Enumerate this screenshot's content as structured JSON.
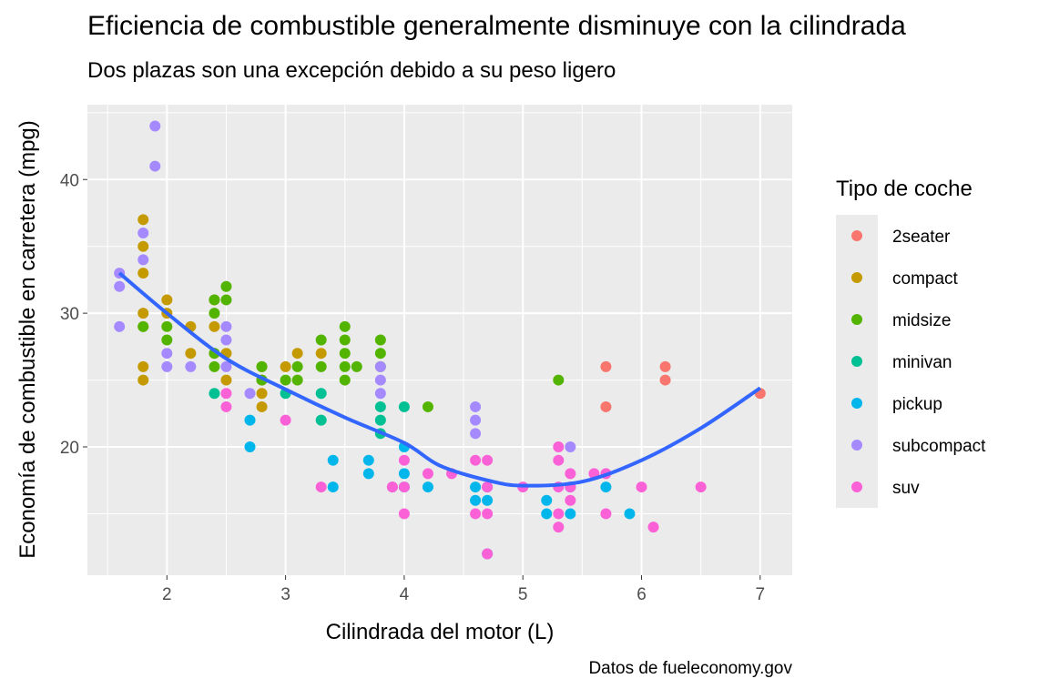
{
  "chart_data": {
    "type": "scatter",
    "title": "Eficiencia de combustible generalmente disminuye con la cilindrada",
    "subtitle": "Dos plazas son una excepción debido a su peso ligero",
    "caption": "Datos de fueleconomy.gov",
    "xlabel": "Cilindrada del motor (L)",
    "ylabel": "Economía de combustible en carretera (mpg)",
    "xlim": [
      1.33,
      7.27
    ],
    "ylim": [
      10.4,
      45.6
    ],
    "xticks": [
      2,
      3,
      4,
      5,
      6,
      7
    ],
    "yticks": [
      20,
      30,
      40
    ],
    "grid": true,
    "legend": {
      "title": "Tipo de coche",
      "position": "right"
    },
    "series": [
      {
        "name": "2seater",
        "color": "#F8766D",
        "points": [
          [
            5.7,
            26
          ],
          [
            5.7,
            23
          ],
          [
            6.2,
            26
          ],
          [
            6.2,
            25
          ],
          [
            7.0,
            24
          ]
        ]
      },
      {
        "name": "compact",
        "color": "#C49A00",
        "points": [
          [
            1.8,
            37
          ],
          [
            1.8,
            35
          ],
          [
            1.8,
            33
          ],
          [
            1.8,
            30
          ],
          [
            1.8,
            29
          ],
          [
            1.8,
            26
          ],
          [
            1.8,
            25
          ],
          [
            2.0,
            31
          ],
          [
            2.0,
            30
          ],
          [
            2.2,
            29
          ],
          [
            2.2,
            27
          ],
          [
            2.4,
            31
          ],
          [
            2.4,
            29
          ],
          [
            2.4,
            27
          ],
          [
            2.5,
            27
          ],
          [
            2.5,
            25
          ],
          [
            2.8,
            26
          ],
          [
            2.8,
            25
          ],
          [
            2.8,
            24
          ],
          [
            2.8,
            23
          ],
          [
            3.0,
            26
          ],
          [
            3.1,
            27
          ],
          [
            3.3,
            27
          ]
        ]
      },
      {
        "name": "midsize",
        "color": "#53B400",
        "points": [
          [
            1.8,
            29
          ],
          [
            2.0,
            29
          ],
          [
            2.0,
            28
          ],
          [
            2.4,
            31
          ],
          [
            2.4,
            30
          ],
          [
            2.4,
            27
          ],
          [
            2.4,
            26
          ],
          [
            2.5,
            32
          ],
          [
            2.5,
            31
          ],
          [
            2.8,
            26
          ],
          [
            2.8,
            25
          ],
          [
            3.0,
            25
          ],
          [
            3.1,
            26
          ],
          [
            3.1,
            25
          ],
          [
            3.3,
            28
          ],
          [
            3.3,
            26
          ],
          [
            3.5,
            29
          ],
          [
            3.5,
            28
          ],
          [
            3.5,
            27
          ],
          [
            3.5,
            26
          ],
          [
            3.5,
            25
          ],
          [
            3.6,
            26
          ],
          [
            3.8,
            28
          ],
          [
            3.8,
            27
          ],
          [
            3.8,
            26
          ],
          [
            4.2,
            23
          ],
          [
            5.3,
            25
          ]
        ]
      },
      {
        "name": "minivan",
        "color": "#00C094",
        "points": [
          [
            2.4,
            24
          ],
          [
            3.0,
            24
          ],
          [
            3.3,
            24
          ],
          [
            3.3,
            22
          ],
          [
            3.8,
            23
          ],
          [
            3.8,
            22
          ],
          [
            3.8,
            21
          ],
          [
            4.0,
            23
          ]
        ]
      },
      {
        "name": "pickup",
        "color": "#00B6EB",
        "points": [
          [
            2.7,
            22
          ],
          [
            2.7,
            20
          ],
          [
            3.4,
            19
          ],
          [
            3.4,
            17
          ],
          [
            3.7,
            19
          ],
          [
            3.7,
            18
          ],
          [
            4.0,
            20
          ],
          [
            4.0,
            18
          ],
          [
            4.0,
            17
          ],
          [
            4.2,
            17
          ],
          [
            4.6,
            17
          ],
          [
            4.6,
            16
          ],
          [
            4.7,
            17
          ],
          [
            4.7,
            16
          ],
          [
            4.7,
            12
          ],
          [
            5.2,
            16
          ],
          [
            5.2,
            15
          ],
          [
            5.4,
            17
          ],
          [
            5.4,
            15
          ],
          [
            5.7,
            17
          ],
          [
            5.9,
            15
          ]
        ]
      },
      {
        "name": "subcompact",
        "color": "#A58AFF",
        "points": [
          [
            1.6,
            33
          ],
          [
            1.6,
            32
          ],
          [
            1.6,
            29
          ],
          [
            1.8,
            36
          ],
          [
            1.8,
            34
          ],
          [
            1.9,
            44
          ],
          [
            1.9,
            41
          ],
          [
            2.0,
            27
          ],
          [
            2.0,
            26
          ],
          [
            2.2,
            26
          ],
          [
            2.5,
            29
          ],
          [
            2.5,
            28
          ],
          [
            2.5,
            26
          ],
          [
            2.7,
            24
          ],
          [
            3.8,
            26
          ],
          [
            3.8,
            25
          ],
          [
            3.8,
            24
          ],
          [
            3.9,
            17
          ],
          [
            4.6,
            23
          ],
          [
            4.6,
            22
          ],
          [
            4.6,
            21
          ],
          [
            5.4,
            20
          ]
        ]
      },
      {
        "name": "suv",
        "color": "#FB61D7",
        "points": [
          [
            2.5,
            24
          ],
          [
            2.5,
            23
          ],
          [
            3.0,
            22
          ],
          [
            3.3,
            17
          ],
          [
            3.9,
            17
          ],
          [
            4.0,
            19
          ],
          [
            4.0,
            17
          ],
          [
            4.0,
            15
          ],
          [
            4.2,
            18
          ],
          [
            4.4,
            18
          ],
          [
            4.6,
            19
          ],
          [
            4.6,
            15
          ],
          [
            4.7,
            19
          ],
          [
            4.7,
            17
          ],
          [
            4.7,
            15
          ],
          [
            4.7,
            12
          ],
          [
            5.0,
            17
          ],
          [
            5.3,
            20
          ],
          [
            5.3,
            19
          ],
          [
            5.3,
            17
          ],
          [
            5.3,
            15
          ],
          [
            5.3,
            14
          ],
          [
            5.4,
            18
          ],
          [
            5.4,
            17
          ],
          [
            5.4,
            16
          ],
          [
            5.6,
            18
          ],
          [
            5.7,
            18
          ],
          [
            5.7,
            15
          ],
          [
            6.0,
            17
          ],
          [
            6.1,
            14
          ],
          [
            6.5,
            17
          ]
        ]
      }
    ],
    "smooth": {
      "color": "#3366FF",
      "points": [
        [
          1.6,
          33
        ],
        [
          2.0,
          30
        ],
        [
          2.5,
          26.6
        ],
        [
          3.0,
          24.3
        ],
        [
          3.5,
          22.2
        ],
        [
          4.0,
          20.3
        ],
        [
          4.3,
          18.6
        ],
        [
          4.7,
          17.5
        ],
        [
          5.0,
          17.1
        ],
        [
          5.5,
          17.4
        ],
        [
          6.0,
          19.0
        ],
        [
          6.5,
          21.4
        ],
        [
          7.0,
          24.4
        ]
      ]
    }
  }
}
